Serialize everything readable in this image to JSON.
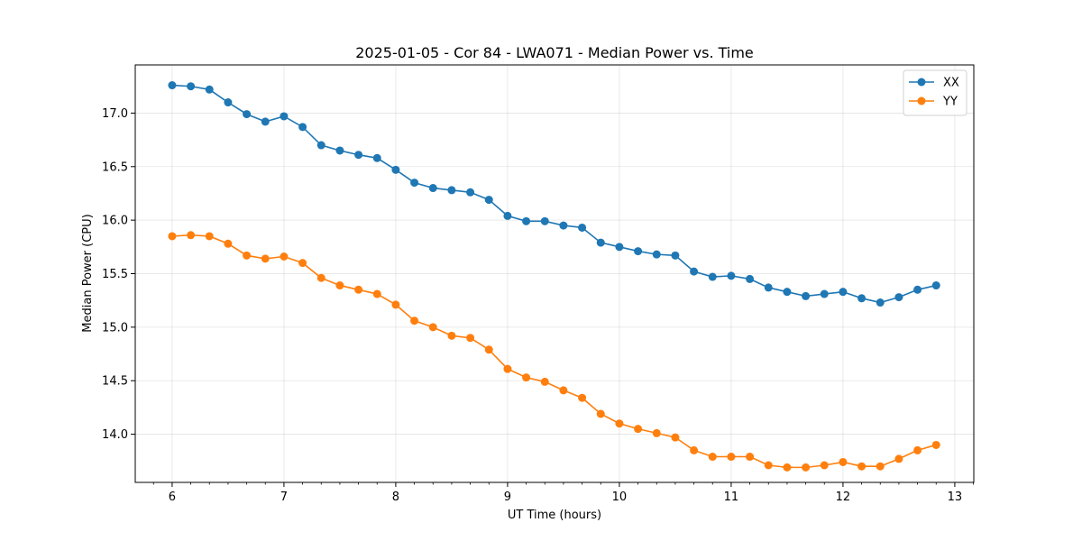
{
  "chart_data": {
    "type": "line",
    "title": "2025-01-05 - Cor 84 - LWA071 - Median Power vs. Time",
    "xlabel": "UT Time (hours)",
    "ylabel": "Median Power (CPU)",
    "xlim": [
      5.67,
      13.17
    ],
    "ylim": [
      13.55,
      17.45
    ],
    "xticks": [
      6,
      7,
      8,
      9,
      10,
      11,
      12,
      13
    ],
    "xtick_labels": [
      "6",
      "7",
      "8",
      "9",
      "10",
      "11",
      "12",
      "13"
    ],
    "yticks": [
      14.0,
      14.5,
      15.0,
      15.5,
      16.0,
      16.5,
      17.0
    ],
    "ytick_labels": [
      "14.0",
      "14.5",
      "15.0",
      "15.5",
      "16.0",
      "16.5",
      "17.0"
    ],
    "grid": true,
    "legend_position": "top-right",
    "x": [
      6.0,
      6.1667,
      6.3333,
      6.5,
      6.6667,
      6.8333,
      7.0,
      7.1667,
      7.3333,
      7.5,
      7.6667,
      7.8333,
      8.0,
      8.1667,
      8.3333,
      8.5,
      8.6667,
      8.8333,
      9.0,
      9.1667,
      9.3333,
      9.5,
      9.6667,
      9.8333,
      10.0,
      10.1667,
      10.3333,
      10.5,
      10.6667,
      10.8333,
      11.0,
      11.1667,
      11.3333,
      11.5,
      11.6667,
      11.8333,
      12.0,
      12.1667,
      12.3333,
      12.5,
      12.6667,
      12.8333
    ],
    "series": [
      {
        "name": "XX",
        "color": "#1f77b4",
        "values": [
          17.26,
          17.25,
          17.22,
          17.1,
          16.99,
          16.92,
          16.97,
          16.87,
          16.7,
          16.65,
          16.61,
          16.58,
          16.47,
          16.35,
          16.3,
          16.28,
          16.26,
          16.19,
          16.04,
          15.99,
          15.99,
          15.95,
          15.93,
          15.79,
          15.75,
          15.71,
          15.68,
          15.67,
          15.52,
          15.47,
          15.48,
          15.45,
          15.37,
          15.33,
          15.29,
          15.31,
          15.33,
          15.27,
          15.23,
          15.28,
          15.35,
          15.39
        ]
      },
      {
        "name": "YY",
        "color": "#ff7f0e",
        "values": [
          15.85,
          15.86,
          15.85,
          15.78,
          15.67,
          15.64,
          15.66,
          15.6,
          15.46,
          15.39,
          15.35,
          15.31,
          15.21,
          15.06,
          15.0,
          14.92,
          14.9,
          14.79,
          14.61,
          14.53,
          14.49,
          14.41,
          14.34,
          14.19,
          14.1,
          14.05,
          14.01,
          13.97,
          13.85,
          13.79,
          13.79,
          13.79,
          13.71,
          13.69,
          13.69,
          13.71,
          13.74,
          13.7,
          13.7,
          13.77,
          13.85,
          13.9
        ]
      }
    ]
  }
}
